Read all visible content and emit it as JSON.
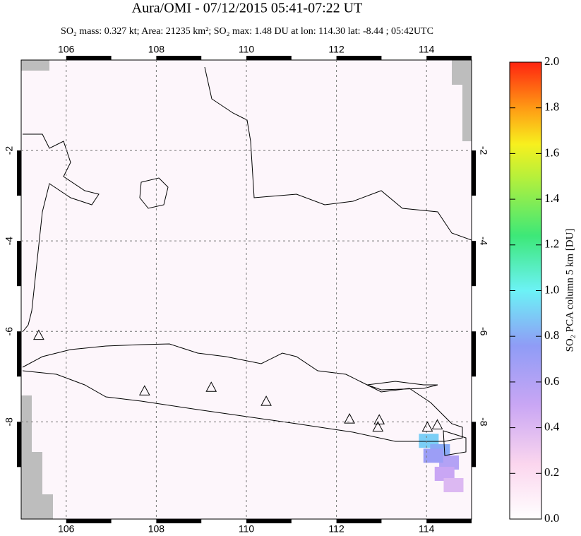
{
  "chart_data": {
    "type": "map",
    "title": "Aura/OMI - 07/12/2015 05:41-07:22 UT",
    "subtitle": "SO₂ mass: 0.327 kt; Area: 21235 km²; SO₂ max: 1.48 DU at lon: 114.30 lat: -8.44 ; 05:42UTC",
    "xlim": [
      105,
      115
    ],
    "xticks": [
      106,
      108,
      110,
      112,
      114
    ],
    "ylim": [
      -10.15,
      0
    ],
    "yticks": [
      -2,
      -4,
      -6,
      -8
    ],
    "grid": true,
    "volcanoes": {
      "x": [
        105.39,
        107.74,
        109.22,
        110.44,
        112.29,
        112.95,
        112.92,
        114.02,
        114.24
      ],
      "y": [
        -6.1,
        -7.33,
        -7.25,
        -7.56,
        -7.95,
        -7.97,
        -8.13,
        -8.13,
        -8.08
      ]
    },
    "so2": {
      "x": [
        114.05,
        114.3,
        114.5,
        114.4,
        114.15,
        114.6
      ],
      "y": [
        -8.42,
        -8.65,
        -8.9,
        -9.15,
        -8.75,
        -9.4
      ],
      "values": [
        0.9,
        0.8,
        0.6,
        0.5,
        0.7,
        0.4
      ]
    },
    "colorbar": {
      "label": "SO₂ PCA column 5 km [DU]",
      "lim": [
        0,
        2
      ],
      "ticks": [
        {
          "value": 0,
          "label": "0.0"
        },
        0.2,
        0.4,
        0.6,
        0.8,
        {
          "value": 1,
          "label": "1.0"
        },
        1.2,
        1.4,
        1.6,
        1.8,
        {
          "value": 2,
          "label": "2.0"
        }
      ]
    }
  }
}
